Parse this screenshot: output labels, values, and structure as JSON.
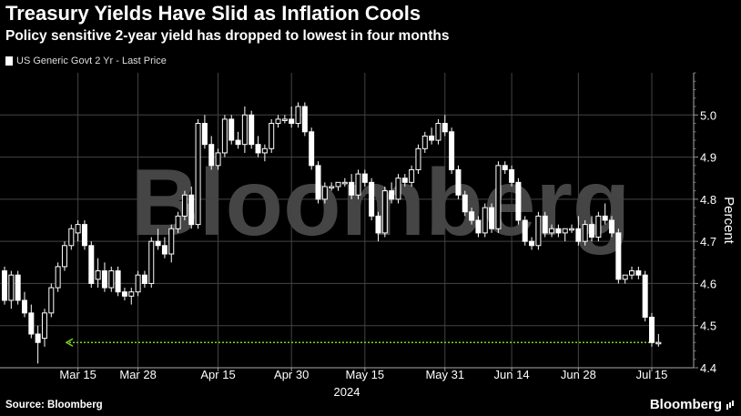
{
  "header": {
    "title": "Treasury Yields Have Slid as Inflation Cools",
    "subtitle": "Policy sensitive 2-year yield has dropped to lowest in four months"
  },
  "legend": {
    "label": "US Generic Govt 2 Yr - Last Price"
  },
  "footer": {
    "source": "Source: Bloomberg",
    "brand": "Bloomberg"
  },
  "watermark": "Bloomberg",
  "colors": {
    "background": "#000000",
    "candle": "#ffffff",
    "grid": "#444444",
    "last_price_line": "#7ed321"
  },
  "chart_data": {
    "type": "candlestick",
    "title": "Treasury Yields Have Slid as Inflation Cools",
    "subtitle": "Policy sensitive 2-year yield has dropped to lowest in four months",
    "ylabel": "Percent",
    "xlabel": "2024",
    "ylim": [
      4.4,
      5.1
    ],
    "yticks": [
      4.4,
      4.5,
      4.6,
      4.7,
      4.8,
      4.9,
      5.0
    ],
    "xtick_labels": [
      "Mar 15",
      "Mar 28",
      "Apr 15",
      "Apr 30",
      "May 15",
      "May 31",
      "Jun 14",
      "Jun 28",
      "Jul 15"
    ],
    "xtick_index": [
      11,
      20,
      32,
      43,
      54,
      66,
      76,
      86,
      97
    ],
    "last_price": 4.46,
    "grid": true,
    "y_axis_side": "right",
    "series": [
      {
        "name": "US Generic Govt 2 Yr - Last Price",
        "ohlc": [
          [
            4.63,
            4.64,
            4.55,
            4.56
          ],
          [
            4.56,
            4.63,
            4.54,
            4.62
          ],
          [
            4.62,
            4.63,
            4.55,
            4.56
          ],
          [
            4.56,
            4.58,
            4.52,
            4.53
          ],
          [
            4.53,
            4.55,
            4.47,
            4.48
          ],
          [
            4.48,
            4.5,
            4.41,
            4.46
          ],
          [
            4.47,
            4.54,
            4.45,
            4.53
          ],
          [
            4.53,
            4.6,
            4.52,
            4.59
          ],
          [
            4.59,
            4.65,
            4.58,
            4.64
          ],
          [
            4.64,
            4.7,
            4.63,
            4.69
          ],
          [
            4.69,
            4.74,
            4.68,
            4.73
          ],
          [
            4.72,
            4.75,
            4.7,
            4.74
          ],
          [
            4.74,
            4.75,
            4.68,
            4.69
          ],
          [
            4.69,
            4.7,
            4.59,
            4.6
          ],
          [
            4.61,
            4.66,
            4.59,
            4.63
          ],
          [
            4.63,
            4.65,
            4.58,
            4.59
          ],
          [
            4.59,
            4.64,
            4.58,
            4.63
          ],
          [
            4.63,
            4.64,
            4.57,
            4.58
          ],
          [
            4.58,
            4.59,
            4.56,
            4.57
          ],
          [
            4.57,
            4.59,
            4.55,
            4.58
          ],
          [
            4.58,
            4.63,
            4.57,
            4.62
          ],
          [
            4.62,
            4.63,
            4.59,
            4.6
          ],
          [
            4.6,
            4.71,
            4.59,
            4.7
          ],
          [
            4.7,
            4.73,
            4.68,
            4.69
          ],
          [
            4.69,
            4.71,
            4.66,
            4.67
          ],
          [
            4.67,
            4.74,
            4.65,
            4.73
          ],
          [
            4.73,
            4.77,
            4.72,
            4.76
          ],
          [
            4.76,
            4.82,
            4.75,
            4.81
          ],
          [
            4.81,
            4.83,
            4.73,
            4.74
          ],
          [
            4.74,
            4.99,
            4.73,
            4.98
          ],
          [
            4.98,
            5.0,
            4.92,
            4.93
          ],
          [
            4.93,
            4.95,
            4.87,
            4.88
          ],
          [
            4.88,
            4.92,
            4.87,
            4.91
          ],
          [
            4.91,
            5.0,
            4.9,
            4.99
          ],
          [
            4.99,
            5.0,
            4.93,
            4.94
          ],
          [
            4.94,
            4.96,
            4.92,
            4.93
          ],
          [
            4.93,
            5.02,
            4.91,
            5.0
          ],
          [
            5.0,
            5.01,
            4.92,
            4.93
          ],
          [
            4.93,
            4.95,
            4.9,
            4.91
          ],
          [
            4.91,
            4.93,
            4.89,
            4.92
          ],
          [
            4.92,
            4.99,
            4.91,
            4.98
          ],
          [
            4.98,
            5.0,
            4.97,
            4.99
          ],
          [
            4.99,
            5.0,
            4.98,
            4.99
          ],
          [
            4.99,
            5.02,
            4.97,
            4.98
          ],
          [
            4.98,
            5.03,
            4.97,
            5.02
          ],
          [
            5.02,
            5.03,
            4.95,
            4.96
          ],
          [
            4.96,
            4.97,
            4.87,
            4.88
          ],
          [
            4.88,
            4.89,
            4.79,
            4.8
          ],
          [
            4.8,
            4.84,
            4.79,
            4.83
          ],
          [
            4.83,
            4.84,
            4.82,
            4.83
          ],
          [
            4.83,
            4.84,
            4.82,
            4.84
          ],
          [
            4.84,
            4.85,
            4.83,
            4.84
          ],
          [
            4.84,
            4.86,
            4.8,
            4.81
          ],
          [
            4.81,
            4.87,
            4.8,
            4.86
          ],
          [
            4.86,
            4.87,
            4.83,
            4.84
          ],
          [
            4.84,
            4.85,
            4.75,
            4.76
          ],
          [
            4.76,
            4.77,
            4.7,
            4.72
          ],
          [
            4.72,
            4.83,
            4.71,
            4.82
          ],
          [
            4.82,
            4.84,
            4.79,
            4.8
          ],
          [
            4.8,
            4.86,
            4.79,
            4.85
          ],
          [
            4.85,
            4.86,
            4.83,
            4.84
          ],
          [
            4.84,
            4.88,
            4.83,
            4.87
          ],
          [
            4.87,
            4.93,
            4.86,
            4.92
          ],
          [
            4.92,
            4.96,
            4.91,
            4.95
          ],
          [
            4.95,
            4.97,
            4.93,
            4.94
          ],
          [
            4.94,
            4.99,
            4.93,
            4.98
          ],
          [
            4.98,
            5.0,
            4.95,
            4.96
          ],
          [
            4.96,
            4.97,
            4.86,
            4.87
          ],
          [
            4.87,
            4.88,
            4.8,
            4.81
          ],
          [
            4.81,
            4.82,
            4.76,
            4.77
          ],
          [
            4.77,
            4.78,
            4.74,
            4.75
          ],
          [
            4.75,
            4.76,
            4.71,
            4.72
          ],
          [
            4.72,
            4.79,
            4.71,
            4.78
          ],
          [
            4.78,
            4.79,
            4.72,
            4.73
          ],
          [
            4.73,
            4.89,
            4.72,
            4.88
          ],
          [
            4.88,
            4.89,
            4.86,
            4.87
          ],
          [
            4.87,
            4.88,
            4.83,
            4.84
          ],
          [
            4.84,
            4.85,
            4.74,
            4.75
          ],
          [
            4.75,
            4.76,
            4.69,
            4.7
          ],
          [
            4.7,
            4.71,
            4.68,
            4.69
          ],
          [
            4.69,
            4.77,
            4.68,
            4.76
          ],
          [
            4.76,
            4.77,
            4.71,
            4.72
          ],
          [
            4.72,
            4.74,
            4.71,
            4.73
          ],
          [
            4.73,
            4.74,
            4.71,
            4.72
          ],
          [
            4.72,
            4.73,
            4.7,
            4.73
          ],
          [
            4.73,
            4.74,
            4.72,
            4.73
          ],
          [
            4.73,
            4.76,
            4.69,
            4.7
          ],
          [
            4.7,
            4.75,
            4.69,
            4.74
          ],
          [
            4.74,
            4.76,
            4.7,
            4.71
          ],
          [
            4.71,
            4.77,
            4.7,
            4.76
          ],
          [
            4.76,
            4.79,
            4.74,
            4.75
          ],
          [
            4.75,
            4.76,
            4.71,
            4.72
          ],
          [
            4.72,
            4.73,
            4.6,
            4.61
          ],
          [
            4.61,
            4.62,
            4.6,
            4.62
          ],
          [
            4.62,
            4.64,
            4.61,
            4.63
          ],
          [
            4.63,
            4.64,
            4.61,
            4.62
          ],
          [
            4.62,
            4.63,
            4.51,
            4.52
          ],
          [
            4.52,
            4.53,
            4.45,
            4.46
          ],
          [
            4.46,
            4.48,
            4.45,
            4.46
          ]
        ]
      }
    ]
  }
}
